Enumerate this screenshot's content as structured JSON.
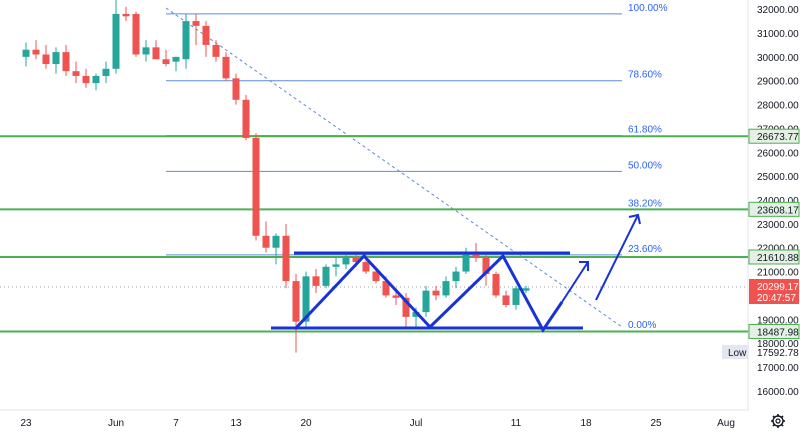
{
  "chart_data": {
    "type": "candlestick",
    "title": "",
    "y_axis": {
      "min": 15700,
      "max": 32300,
      "ticks": [
        16000,
        17000,
        18000,
        19000,
        20000,
        21000,
        22000,
        23000,
        24000,
        25000,
        26000,
        27000,
        28000,
        29000,
        30000,
        31000,
        32000
      ],
      "tick_labels": [
        "16000.00",
        "17000.00",
        "18000.00",
        "19000.00",
        "20000.00",
        "21000.00",
        "22000.00",
        "23000.00",
        "24000.00",
        "25000.00",
        "26000.00",
        "27000.00",
        "28000.00",
        "29000.00",
        "30000.00",
        "31000.00",
        "32000.00"
      ]
    },
    "x_axis": {
      "labels": [
        {
          "label": "23",
          "index": 0
        },
        {
          "label": "Jun",
          "index": 9
        },
        {
          "label": "7",
          "index": 15
        },
        {
          "label": "13",
          "index": 21
        },
        {
          "label": "20",
          "index": 28
        },
        {
          "label": "Jul",
          "index": 39
        },
        {
          "label": "11",
          "index": 49
        },
        {
          "label": "18",
          "index": 56
        },
        {
          "label": "25",
          "index": 63
        },
        {
          "label": "Aug",
          "index": 70
        }
      ]
    },
    "candles": [
      {
        "o": 30000,
        "h": 30600,
        "l": 29600,
        "c": 30300
      },
      {
        "o": 30300,
        "h": 30700,
        "l": 29900,
        "c": 30100
      },
      {
        "o": 30100,
        "h": 30500,
        "l": 29500,
        "c": 29700
      },
      {
        "o": 29700,
        "h": 30400,
        "l": 29300,
        "c": 30200
      },
      {
        "o": 30200,
        "h": 30500,
        "l": 29200,
        "c": 29400
      },
      {
        "o": 29400,
        "h": 29800,
        "l": 28900,
        "c": 29200
      },
      {
        "o": 29200,
        "h": 29500,
        "l": 28700,
        "c": 28900
      },
      {
        "o": 28900,
        "h": 29300,
        "l": 28600,
        "c": 29200
      },
      {
        "o": 29200,
        "h": 29800,
        "l": 28900,
        "c": 29500
      },
      {
        "o": 29500,
        "h": 32400,
        "l": 29300,
        "c": 31800
      },
      {
        "o": 31800,
        "h": 32100,
        "l": 31500,
        "c": 31700
      },
      {
        "o": 31800,
        "h": 31900,
        "l": 30000,
        "c": 30100
      },
      {
        "o": 30100,
        "h": 30700,
        "l": 29800,
        "c": 30400
      },
      {
        "o": 30400,
        "h": 30700,
        "l": 30000,
        "c": 29900
      },
      {
        "o": 29900,
        "h": 30300,
        "l": 29600,
        "c": 29700
      },
      {
        "o": 29800,
        "h": 30000,
        "l": 29400,
        "c": 30000
      },
      {
        "o": 29900,
        "h": 31800,
        "l": 29500,
        "c": 31500
      },
      {
        "o": 31500,
        "h": 31800,
        "l": 30500,
        "c": 31300
      },
      {
        "o": 31300,
        "h": 31500,
        "l": 30000,
        "c": 30500
      },
      {
        "o": 30500,
        "h": 30700,
        "l": 29800,
        "c": 30000
      },
      {
        "o": 30000,
        "h": 30200,
        "l": 29000,
        "c": 29100
      },
      {
        "o": 29100,
        "h": 29300,
        "l": 28000,
        "c": 28200
      },
      {
        "o": 28200,
        "h": 28400,
        "l": 26500,
        "c": 26600
      },
      {
        "o": 26600,
        "h": 26800,
        "l": 22300,
        "c": 22500
      },
      {
        "o": 22500,
        "h": 23100,
        "l": 21800,
        "c": 22000
      },
      {
        "o": 22000,
        "h": 22600,
        "l": 21300,
        "c": 22500
      },
      {
        "o": 22500,
        "h": 23000,
        "l": 20300,
        "c": 20600
      },
      {
        "o": 20600,
        "h": 20900,
        "l": 17600,
        "c": 18900
      },
      {
        "o": 18900,
        "h": 21000,
        "l": 18700,
        "c": 20800
      },
      {
        "o": 20800,
        "h": 21100,
        "l": 20100,
        "c": 20400
      },
      {
        "o": 20400,
        "h": 21300,
        "l": 20300,
        "c": 21200
      },
      {
        "o": 21200,
        "h": 21600,
        "l": 20800,
        "c": 21300
      },
      {
        "o": 21300,
        "h": 21700,
        "l": 21100,
        "c": 21600
      },
      {
        "o": 21600,
        "h": 21800,
        "l": 21200,
        "c": 21400
      },
      {
        "o": 21400,
        "h": 21700,
        "l": 20900,
        "c": 21000
      },
      {
        "o": 21000,
        "h": 21200,
        "l": 20500,
        "c": 20600
      },
      {
        "o": 20600,
        "h": 20800,
        "l": 19900,
        "c": 20000
      },
      {
        "o": 20000,
        "h": 20300,
        "l": 19600,
        "c": 19900
      },
      {
        "o": 19900,
        "h": 20100,
        "l": 18600,
        "c": 19100
      },
      {
        "o": 19100,
        "h": 19500,
        "l": 18700,
        "c": 19300
      },
      {
        "o": 19300,
        "h": 20400,
        "l": 19100,
        "c": 20200
      },
      {
        "o": 20200,
        "h": 20400,
        "l": 19800,
        "c": 20000
      },
      {
        "o": 20000,
        "h": 20800,
        "l": 19900,
        "c": 20600
      },
      {
        "o": 20600,
        "h": 21200,
        "l": 20300,
        "c": 21000
      },
      {
        "o": 21000,
        "h": 22000,
        "l": 20900,
        "c": 21800
      },
      {
        "o": 21800,
        "h": 22200,
        "l": 21400,
        "c": 21600
      },
      {
        "o": 21600,
        "h": 21700,
        "l": 20400,
        "c": 20900
      },
      {
        "o": 20900,
        "h": 21000,
        "l": 19900,
        "c": 20000
      },
      {
        "o": 20000,
        "h": 20200,
        "l": 19500,
        "c": 19600
      },
      {
        "o": 19600,
        "h": 20400,
        "l": 19400,
        "c": 20300
      },
      {
        "o": 20200,
        "h": 20400,
        "l": 20100,
        "c": 20300
      }
    ],
    "colors": {
      "up": "#26a69a",
      "down": "#ef5350",
      "fib": "#5b8ae0",
      "support": "#4caf50",
      "pattern": "#1733d8",
      "current": "#ef5350"
    },
    "fib_levels": [
      {
        "label": "100.00%",
        "value": 31800
      },
      {
        "label": "78.60%",
        "value": 29000
      },
      {
        "label": "61.80%",
        "value": 26700
      },
      {
        "label": "50.00%",
        "value": 25200
      },
      {
        "label": "38.20%",
        "value": 23600
      },
      {
        "label": "23.60%",
        "value": 21700
      },
      {
        "label": "0.00%",
        "value": 18500
      }
    ],
    "horizontal_levels": [
      {
        "label": "26673.77",
        "value": 26673.77
      },
      {
        "label": "23608.17",
        "value": 23608.17
      },
      {
        "label": "21610.88",
        "value": 21610.88
      },
      {
        "label": "18487.98",
        "value": 18487.98
      }
    ],
    "current_price": {
      "label": "20299.17",
      "countdown": "20:47:57",
      "value": 20299.17
    },
    "low_marker": {
      "tag": "Low",
      "label": "17592.78",
      "value": 17592.78
    }
  }
}
